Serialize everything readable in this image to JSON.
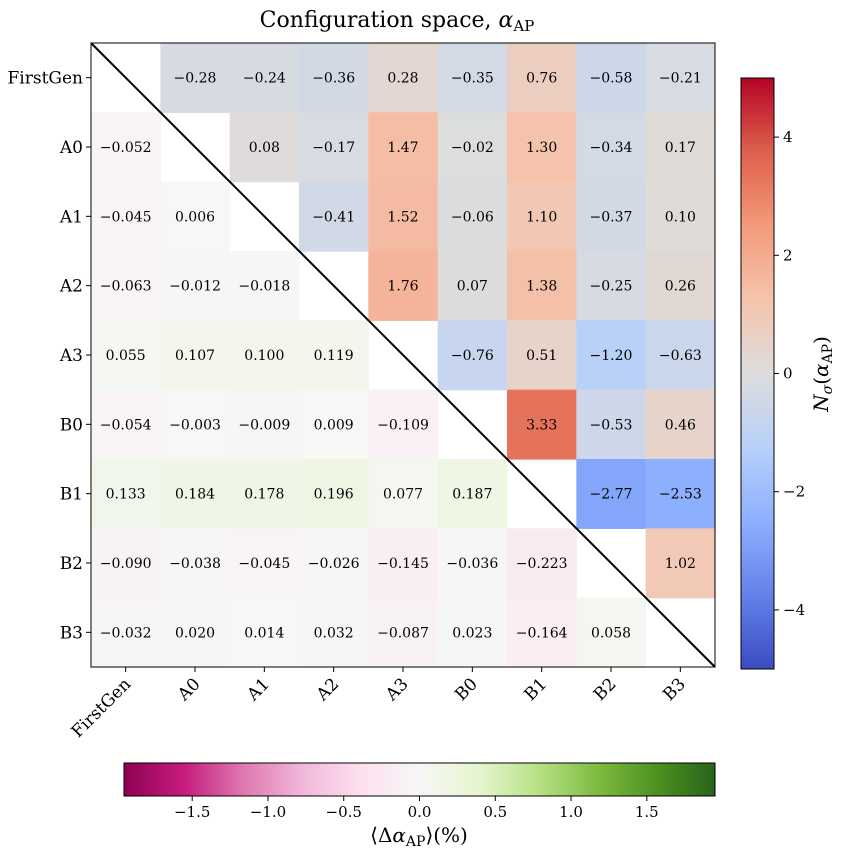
{
  "chart_data": {
    "type": "heatmap",
    "title": "Configuration space, α_AP",
    "labels": [
      "FirstGen",
      "A0",
      "A1",
      "A2",
      "A3",
      "B0",
      "B1",
      "B2",
      "B3"
    ],
    "upper_triangle": {
      "description": "N_sigma(alpha_AP)",
      "colormap": "coolwarm",
      "range": [
        -5,
        5
      ],
      "values": [
        [
          null,
          "-0.28",
          "-0.24",
          "-0.36",
          "0.28",
          "-0.35",
          "0.76",
          "-0.58",
          "-0.21"
        ],
        [
          null,
          null,
          "0.08",
          "-0.17",
          "1.47",
          "-0.02",
          "1.30",
          "-0.34",
          "0.17"
        ],
        [
          null,
          null,
          null,
          "-0.41",
          "1.52",
          "-0.06",
          "1.10",
          "-0.37",
          "0.10"
        ],
        [
          null,
          null,
          null,
          null,
          "1.76",
          "0.07",
          "1.38",
          "-0.25",
          "0.26"
        ],
        [
          null,
          null,
          null,
          null,
          null,
          "-0.76",
          "0.51",
          "-1.20",
          "-0.63"
        ],
        [
          null,
          null,
          null,
          null,
          null,
          null,
          "3.33",
          "-0.53",
          "0.46"
        ],
        [
          null,
          null,
          null,
          null,
          null,
          null,
          null,
          "-2.77",
          "-2.53"
        ],
        [
          null,
          null,
          null,
          null,
          null,
          null,
          null,
          null,
          "1.02"
        ],
        [
          null,
          null,
          null,
          null,
          null,
          null,
          null,
          null,
          null
        ]
      ]
    },
    "lower_triangle": {
      "description": "mean Delta alpha_AP (%)",
      "colormap": "PiYG",
      "range": [
        -1.95,
        1.95
      ],
      "values": [
        [
          null,
          null,
          null,
          null,
          null,
          null,
          null,
          null,
          null
        ],
        [
          "-0.052",
          null,
          null,
          null,
          null,
          null,
          null,
          null,
          null
        ],
        [
          "-0.045",
          "0.006",
          null,
          null,
          null,
          null,
          null,
          null,
          null
        ],
        [
          "-0.063",
          "-0.012",
          "-0.018",
          null,
          null,
          null,
          null,
          null,
          null
        ],
        [
          "0.055",
          "0.107",
          "0.100",
          "0.119",
          null,
          null,
          null,
          null,
          null
        ],
        [
          "-0.054",
          "-0.003",
          "-0.009",
          "0.009",
          "-0.109",
          null,
          null,
          null,
          null
        ],
        [
          "0.133",
          "0.184",
          "0.178",
          "0.196",
          "0.077",
          "0.187",
          null,
          null,
          null
        ],
        [
          "-0.090",
          "-0.038",
          "-0.045",
          "-0.026",
          "-0.145",
          "-0.036",
          "-0.223",
          null,
          null
        ],
        [
          "-0.032",
          "0.020",
          "0.014",
          "0.032",
          "-0.087",
          "0.023",
          "-0.164",
          "0.058",
          null
        ]
      ]
    },
    "right_colorbar": {
      "label": "N_σ(α_AP)",
      "ticks": [
        {
          "value": 4,
          "label": "4"
        },
        {
          "value": 2,
          "label": "2"
        },
        {
          "value": 0,
          "label": "0"
        },
        {
          "value": -2,
          "label": "−2"
        },
        {
          "value": -4,
          "label": "−4"
        }
      ]
    },
    "bottom_colorbar": {
      "label": "⟨Δα_AP⟩(%)",
      "ticks": [
        {
          "value": -1.5,
          "label": "−1.5"
        },
        {
          "value": -1.0,
          "label": "−1.0"
        },
        {
          "value": -0.5,
          "label": "−0.5"
        },
        {
          "value": 0.0,
          "label": "0.0"
        },
        {
          "value": 0.5,
          "label": "0.5"
        },
        {
          "value": 1.0,
          "label": "1.0"
        },
        {
          "value": 1.5,
          "label": "1.5"
        }
      ]
    }
  }
}
